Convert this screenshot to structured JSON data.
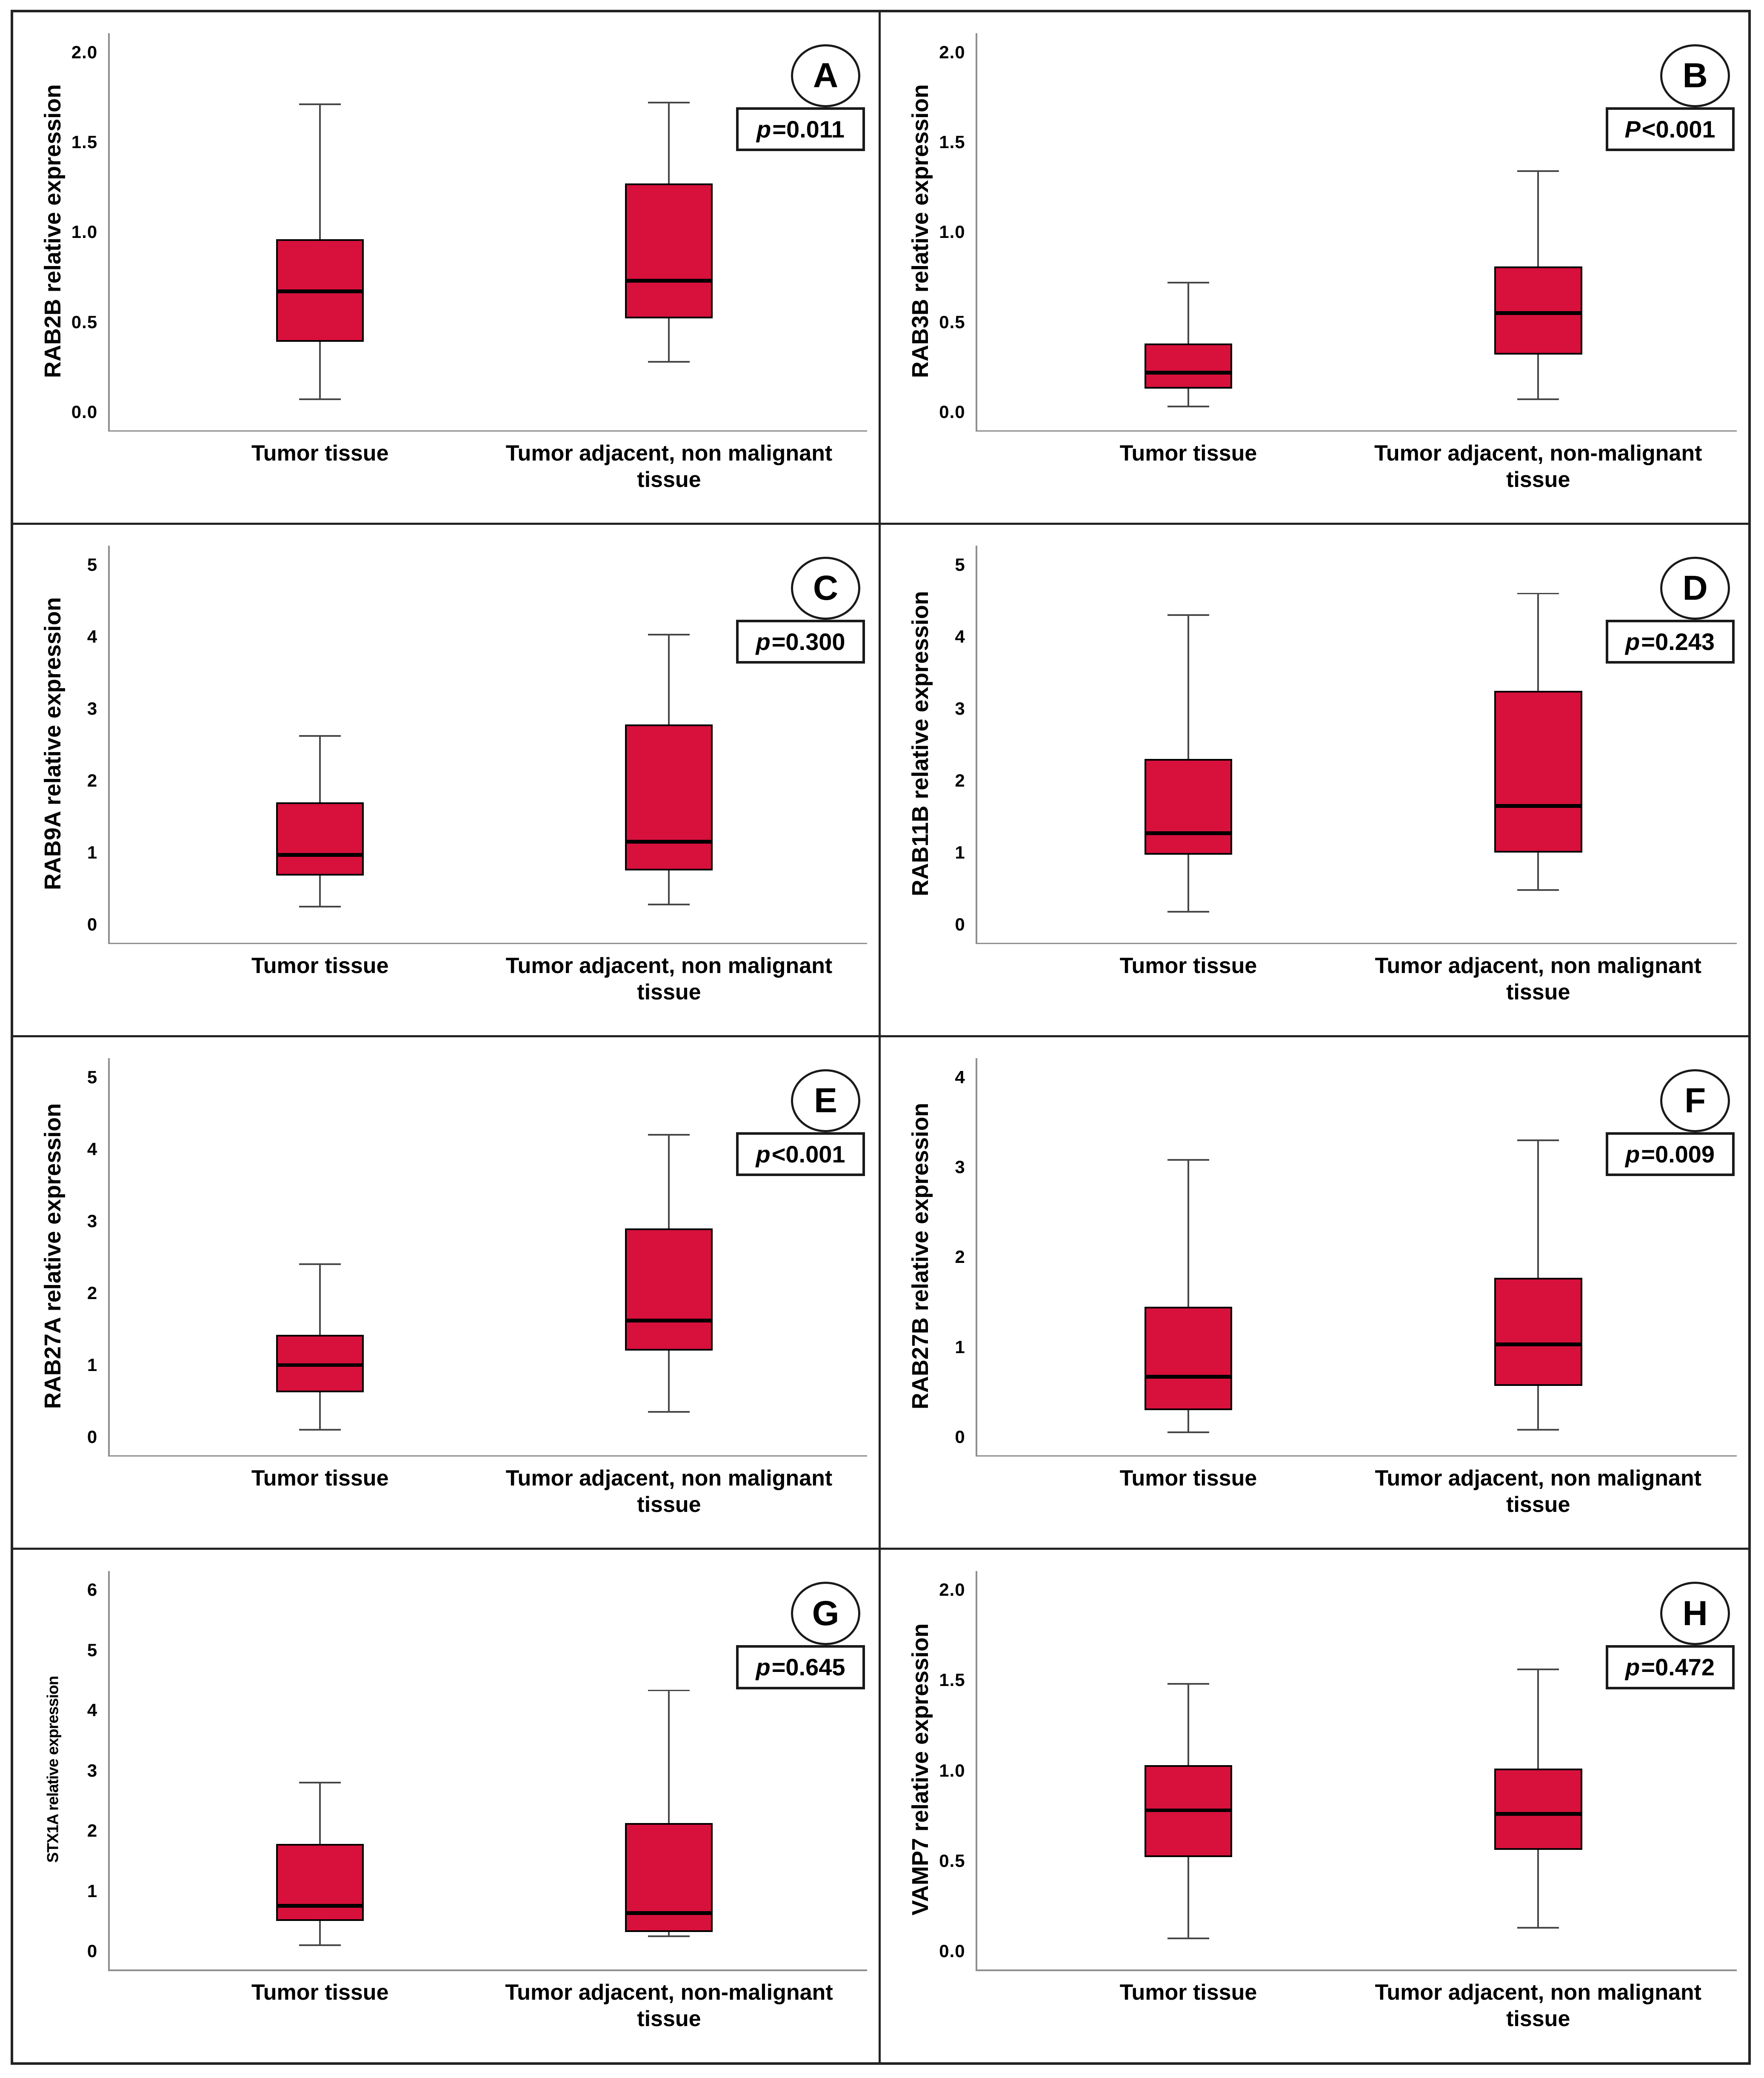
{
  "figure": {
    "background": "#ffffff",
    "frame_color": "#232323",
    "box_fill": "#d8103c",
    "box_border": "#000000",
    "median_color": "#000000",
    "whisker_color": "#474747",
    "axis_color": "#8e8e8e"
  },
  "chart_data": [
    {
      "type": "boxplot",
      "letter": "A",
      "p_symbol": "p",
      "p_rest": "=0.011",
      "ylabel": "RAB2B relative expression",
      "ylabel_small": false,
      "ymax": 2.0,
      "ylim": [
        0,
        2.0
      ],
      "grid": false,
      "yticks": [
        {
          "label": "2.0",
          "value": 2.0
        },
        {
          "label": "1.5",
          "value": 1.5
        },
        {
          "label": "1.0",
          "value": 1.0
        },
        {
          "label": "0.5",
          "value": 0.5
        },
        {
          "label": "0.0",
          "value": 0.0
        }
      ],
      "boxes": [
        {
          "category": "Tumor tissue",
          "whisker_low": 0.07,
          "q1": 0.39,
          "median": 0.67,
          "q3": 0.96,
          "whisker_high": 1.71
        },
        {
          "category": "Tumor adjacent, non malignant\ntissue",
          "whisker_low": 0.28,
          "q1": 0.52,
          "median": 0.73,
          "q3": 1.27,
          "whisker_high": 1.72
        }
      ]
    },
    {
      "type": "boxplot",
      "letter": "B",
      "p_symbol": "P",
      "p_rest": "<0.001",
      "ylabel": "RAB3B relative expression",
      "ylabel_small": false,
      "ymax": 2.0,
      "ylim": [
        0,
        2.0
      ],
      "grid": false,
      "yticks": [
        {
          "label": "2.0",
          "value": 2.0
        },
        {
          "label": "1.5",
          "value": 1.5
        },
        {
          "label": "1.0",
          "value": 1.0
        },
        {
          "label": "0.5",
          "value": 0.5
        },
        {
          "label": "0.0",
          "value": 0.0
        }
      ],
      "boxes": [
        {
          "category": "Tumor tissue",
          "whisker_low": 0.03,
          "q1": 0.13,
          "median": 0.22,
          "q3": 0.38,
          "whisker_high": 0.72
        },
        {
          "category": "Tumor adjacent, non-malignant\ntissue",
          "whisker_low": 0.07,
          "q1": 0.32,
          "median": 0.55,
          "q3": 0.81,
          "whisker_high": 1.34
        }
      ]
    },
    {
      "type": "boxplot",
      "letter": "C",
      "p_symbol": "p",
      "p_rest": "=0.300",
      "ylabel": "RAB9A relative expression",
      "ylabel_small": false,
      "ymax": 5,
      "ylim": [
        0,
        5
      ],
      "grid": false,
      "yticks": [
        {
          "label": "5",
          "value": 5
        },
        {
          "label": "4",
          "value": 4
        },
        {
          "label": "3",
          "value": 3
        },
        {
          "label": "2",
          "value": 2
        },
        {
          "label": "1",
          "value": 1
        },
        {
          "label": "0",
          "value": 0
        }
      ],
      "boxes": [
        {
          "category": "Tumor tissue",
          "whisker_low": 0.25,
          "q1": 0.68,
          "median": 0.97,
          "q3": 1.7,
          "whisker_high": 2.62
        },
        {
          "category": "Tumor adjacent, non malignant\ntissue",
          "whisker_low": 0.28,
          "q1": 0.75,
          "median": 1.15,
          "q3": 2.78,
          "whisker_high": 4.03
        }
      ]
    },
    {
      "type": "boxplot",
      "letter": "D",
      "p_symbol": "p",
      "p_rest": "=0.243",
      "ylabel": "RAB11B relative expression",
      "ylabel_small": false,
      "ymax": 5,
      "ylim": [
        0,
        5
      ],
      "grid": false,
      "yticks": [
        {
          "label": "5",
          "value": 5
        },
        {
          "label": "4",
          "value": 4
        },
        {
          "label": "3",
          "value": 3
        },
        {
          "label": "2",
          "value": 2
        },
        {
          "label": "1",
          "value": 1
        },
        {
          "label": "0",
          "value": 0
        }
      ],
      "boxes": [
        {
          "category": "Tumor tissue",
          "whisker_low": 0.18,
          "q1": 0.97,
          "median": 1.27,
          "q3": 2.3,
          "whisker_high": 4.3
        },
        {
          "category": "Tumor adjacent, non malignant\ntissue",
          "whisker_low": 0.48,
          "q1": 1.0,
          "median": 1.65,
          "q3": 3.25,
          "whisker_high": 4.6
        }
      ]
    },
    {
      "type": "boxplot",
      "letter": "E",
      "p_symbol": "p",
      "p_rest": "<0.001",
      "ylabel": "RAB27A relative expression",
      "ylabel_small": false,
      "ymax": 5,
      "ylim": [
        0,
        5
      ],
      "grid": false,
      "yticks": [
        {
          "label": "5",
          "value": 5
        },
        {
          "label": "4",
          "value": 4
        },
        {
          "label": "3",
          "value": 3
        },
        {
          "label": "2",
          "value": 2
        },
        {
          "label": "1",
          "value": 1
        },
        {
          "label": "0",
          "value": 0
        }
      ],
      "boxes": [
        {
          "category": "Tumor tissue",
          "whisker_low": 0.1,
          "q1": 0.62,
          "median": 1.0,
          "q3": 1.42,
          "whisker_high": 2.4
        },
        {
          "category": "Tumor adjacent, non malignant\ntissue",
          "whisker_low": 0.35,
          "q1": 1.2,
          "median": 1.62,
          "q3": 2.9,
          "whisker_high": 4.2
        }
      ]
    },
    {
      "type": "boxplot",
      "letter": "F",
      "p_symbol": "p",
      "p_rest": "=0.009",
      "ylabel": "RAB27B relative expression",
      "ylabel_small": false,
      "ymax": 4,
      "ylim": [
        0,
        4
      ],
      "grid": false,
      "yticks": [
        {
          "label": "4",
          "value": 4
        },
        {
          "label": "3",
          "value": 3
        },
        {
          "label": "2",
          "value": 2
        },
        {
          "label": "1",
          "value": 1
        },
        {
          "label": "0",
          "value": 0
        }
      ],
      "boxes": [
        {
          "category": "Tumor tissue",
          "whisker_low": 0.05,
          "q1": 0.3,
          "median": 0.67,
          "q3": 1.45,
          "whisker_high": 3.08
        },
        {
          "category": "Tumor adjacent, non malignant\ntissue",
          "whisker_low": 0.08,
          "q1": 0.57,
          "median": 1.03,
          "q3": 1.77,
          "whisker_high": 3.3
        }
      ]
    },
    {
      "type": "boxplot",
      "letter": "G",
      "p_symbol": "p",
      "p_rest": "=0.645",
      "ylabel": "STX1A relative expression",
      "ylabel_small": true,
      "ymax": 6,
      "ylim": [
        0,
        6
      ],
      "grid": false,
      "yticks": [
        {
          "label": "6",
          "value": 6
        },
        {
          "label": "5",
          "value": 5
        },
        {
          "label": "4",
          "value": 4
        },
        {
          "label": "3",
          "value": 3
        },
        {
          "label": "2",
          "value": 2
        },
        {
          "label": "1",
          "value": 1
        },
        {
          "label": "0",
          "value": 0
        }
      ],
      "boxes": [
        {
          "category": "Tumor tissue",
          "whisker_low": 0.1,
          "q1": 0.5,
          "median": 0.75,
          "q3": 1.78,
          "whisker_high": 2.8
        },
        {
          "category": "Tumor adjacent, non-malignant\ntissue",
          "whisker_low": 0.25,
          "q1": 0.32,
          "median": 0.63,
          "q3": 2.13,
          "whisker_high": 4.33
        }
      ]
    },
    {
      "type": "boxplot",
      "letter": "H",
      "p_symbol": "p",
      "p_rest": "=0.472",
      "ylabel": "VAMP7 relative expression",
      "ylabel_small": false,
      "ymax": 2.0,
      "ylim": [
        0,
        2.0
      ],
      "grid": false,
      "yticks": [
        {
          "label": "2.0",
          "value": 2.0
        },
        {
          "label": "1.5",
          "value": 1.5
        },
        {
          "label": "1.0",
          "value": 1.0
        },
        {
          "label": "0.5",
          "value": 0.5
        },
        {
          "label": "0.0",
          "value": 0.0
        }
      ],
      "boxes": [
        {
          "category": "Tumor tissue",
          "whisker_low": 0.07,
          "q1": 0.52,
          "median": 0.78,
          "q3": 1.03,
          "whisker_high": 1.48
        },
        {
          "category": "Tumor adjacent, non malignant\ntissue",
          "whisker_low": 0.13,
          "q1": 0.56,
          "median": 0.76,
          "q3": 1.01,
          "whisker_high": 1.56
        }
      ]
    }
  ]
}
